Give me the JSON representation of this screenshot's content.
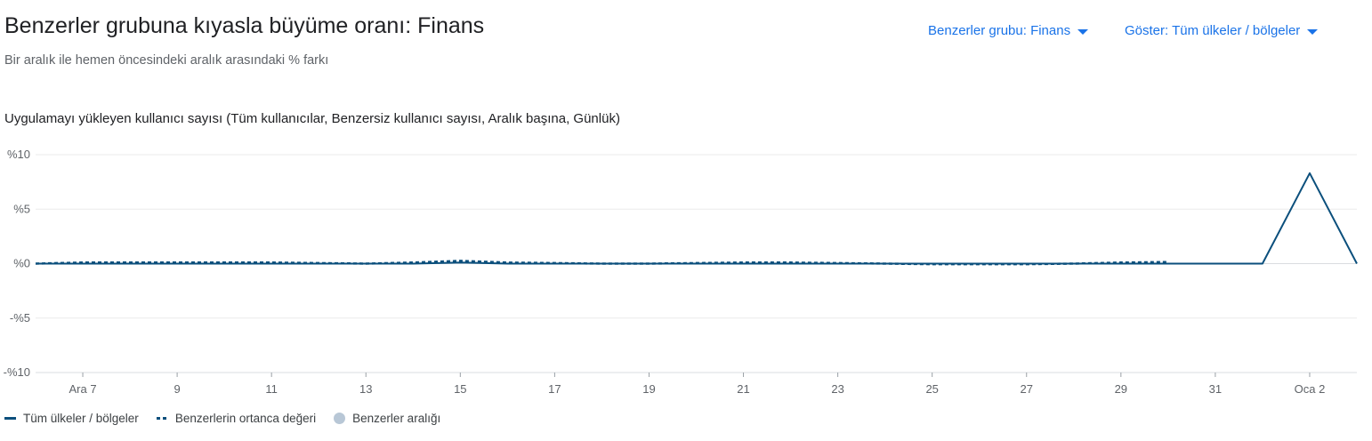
{
  "header": {
    "title": "Benzerler grubuna kıyasla büyüme oranı: Finans",
    "subtitle": "Bir aralık ile hemen öncesindeki aralık arasındaki % farkı",
    "peer_dropdown": "Benzerler grubu: Finans",
    "show_dropdown": "Göster: Tüm ülkeler / bölgeler"
  },
  "colors": {
    "series_main": "#0b4f7c",
    "series_median": "#0b4f7c",
    "peer_range": "#b8c7d6",
    "link": "#1a73e8"
  },
  "chart_data": {
    "type": "line",
    "title": "Uygulamayı yükleyen kullanıcı sayısı (Tüm kullanıcılar, Benzersiz kullanıcı sayısı, Aralık başına, Günlük)",
    "xlabel": "",
    "ylabel": "",
    "x_dates": [
      "2023-12-06",
      "2023-12-07",
      "2023-12-08",
      "2023-12-09",
      "2023-12-10",
      "2023-12-11",
      "2023-12-12",
      "2023-12-13",
      "2023-12-14",
      "2023-12-15",
      "2023-12-16",
      "2023-12-17",
      "2023-12-18",
      "2023-12-19",
      "2023-12-20",
      "2023-12-21",
      "2023-12-22",
      "2023-12-23",
      "2023-12-24",
      "2023-12-25",
      "2023-12-26",
      "2023-12-27",
      "2023-12-28",
      "2023-12-29",
      "2023-12-30",
      "2023-12-31",
      "2024-01-01",
      "2024-01-02",
      "2024-01-03"
    ],
    "x_ticks": [
      {
        "date": "2023-12-07",
        "label": "Ara 7"
      },
      {
        "date": "2023-12-09",
        "label": "9"
      },
      {
        "date": "2023-12-11",
        "label": "11"
      },
      {
        "date": "2023-12-13",
        "label": "13"
      },
      {
        "date": "2023-12-15",
        "label": "15"
      },
      {
        "date": "2023-12-17",
        "label": "17"
      },
      {
        "date": "2023-12-19",
        "label": "19"
      },
      {
        "date": "2023-12-21",
        "label": "21"
      },
      {
        "date": "2023-12-23",
        "label": "23"
      },
      {
        "date": "2023-12-25",
        "label": "25"
      },
      {
        "date": "2023-12-27",
        "label": "27"
      },
      {
        "date": "2023-12-29",
        "label": "29"
      },
      {
        "date": "2023-12-31",
        "label": "31"
      },
      {
        "date": "2024-01-02",
        "label": "Oca 2"
      }
    ],
    "y_ticks": [
      {
        "value": 10,
        "label": "%10"
      },
      {
        "value": 5,
        "label": "%5"
      },
      {
        "value": 0,
        "label": "%0"
      },
      {
        "value": -5,
        "label": "-%5"
      },
      {
        "value": -10,
        "label": "-%10"
      }
    ],
    "ylim": [
      -10,
      10
    ],
    "grid": true,
    "legend_position": "bottom-left",
    "series": [
      {
        "name": "Tüm ülkeler / bölgeler",
        "style": "solid",
        "values": [
          0,
          0,
          0,
          0,
          0,
          0,
          0,
          0,
          0,
          0.1,
          0,
          0,
          0,
          0,
          0,
          0,
          0,
          0,
          0,
          0,
          0,
          0,
          0,
          0,
          0,
          0,
          0,
          8.3,
          0
        ]
      },
      {
        "name": "Benzerlerin ortanca değeri",
        "style": "dashed",
        "values": [
          0,
          0.1,
          0.1,
          0.1,
          0.1,
          0.1,
          0.05,
          0,
          0.1,
          0.25,
          0.1,
          0.05,
          0,
          0,
          0.05,
          0.1,
          0.1,
          0.05,
          0,
          -0.05,
          -0.05,
          -0.05,
          0,
          0.1,
          0.15,
          null,
          null,
          null,
          null
        ]
      },
      {
        "name": "Benzerler aralığı",
        "style": "area",
        "values": []
      }
    ]
  }
}
